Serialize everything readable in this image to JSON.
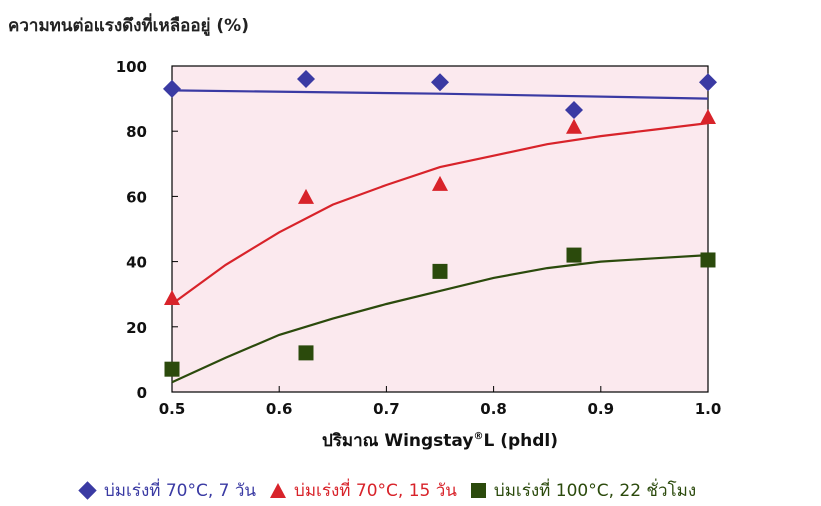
{
  "chart_data": {
    "type": "scatter",
    "ylabel": "ความทนต่อแรงดึงที่เหลืออยู่ (%)",
    "xlabel_main": "ปริมาณ Wingstay",
    "xlabel_sup": "®",
    "xlabel_tail": "L (phdl)",
    "xlim": [
      0.5,
      1.0
    ],
    "ylim": [
      0,
      100
    ],
    "xticks": [
      "0.5",
      "0.6",
      "0.7",
      "0.8",
      "0.9",
      "1.0"
    ],
    "xtick_values": [
      0.5,
      0.6,
      0.7,
      0.8,
      0.9,
      1.0
    ],
    "yticks": [
      "0",
      "20",
      "40",
      "60",
      "80",
      "100"
    ],
    "ytick_values": [
      0,
      20,
      40,
      60,
      80,
      100
    ],
    "plot_background": "#fbe9ee",
    "legend_position": "bottom",
    "series": [
      {
        "name": "บ่มเร่งที่ 70°C, 7 วัน",
        "marker": "diamond",
        "color": "#3a3aa3",
        "points": [
          [
            0.5,
            93
          ],
          [
            0.625,
            96
          ],
          [
            0.75,
            95
          ],
          [
            0.875,
            86.5
          ],
          [
            1.0,
            95
          ]
        ],
        "fit": [
          [
            0.5,
            92.5
          ],
          [
            0.75,
            91.5
          ],
          [
            1.0,
            90
          ]
        ]
      },
      {
        "name": "บ่มเร่งที่ 70°C, 15 วัน",
        "marker": "triangle",
        "color": "#d8232a",
        "points": [
          [
            0.5,
            29
          ],
          [
            0.625,
            60
          ],
          [
            0.75,
            64
          ],
          [
            0.875,
            81.5
          ],
          [
            1.0,
            84.5
          ]
        ],
        "fit": [
          [
            0.5,
            27
          ],
          [
            0.55,
            39
          ],
          [
            0.6,
            49
          ],
          [
            0.65,
            57.5
          ],
          [
            0.7,
            63.5
          ],
          [
            0.75,
            69
          ],
          [
            0.8,
            72.5
          ],
          [
            0.85,
            76
          ],
          [
            0.9,
            78.5
          ],
          [
            0.95,
            80.5
          ],
          [
            1.0,
            82.5
          ]
        ]
      },
      {
        "name": "บ่มเร่งที่ 100°C, 22 ชั่วโมง",
        "marker": "square",
        "color": "#2b4a0c",
        "points": [
          [
            0.5,
            7
          ],
          [
            0.625,
            12
          ],
          [
            0.75,
            37
          ],
          [
            0.875,
            42
          ],
          [
            1.0,
            40.5
          ]
        ],
        "fit": [
          [
            0.5,
            3
          ],
          [
            0.55,
            10.5
          ],
          [
            0.6,
            17.5
          ],
          [
            0.65,
            22.5
          ],
          [
            0.7,
            27
          ],
          [
            0.75,
            31
          ],
          [
            0.8,
            35
          ],
          [
            0.85,
            38
          ],
          [
            0.9,
            40
          ],
          [
            0.95,
            41
          ],
          [
            1.0,
            42
          ]
        ]
      }
    ]
  },
  "legend": [
    {
      "label": "บ่มเร่งที่ 70°C, 7 วัน",
      "marker": "diamond",
      "color": "#3a3aa3"
    },
    {
      "label": "บ่มเร่งที่ 70°C, 15 วัน",
      "marker": "triangle",
      "color": "#d8232a"
    },
    {
      "label": "บ่มเร่งที่ 100°C, 22 ชั่วโมง",
      "marker": "square",
      "color": "#2b4a0c"
    }
  ]
}
